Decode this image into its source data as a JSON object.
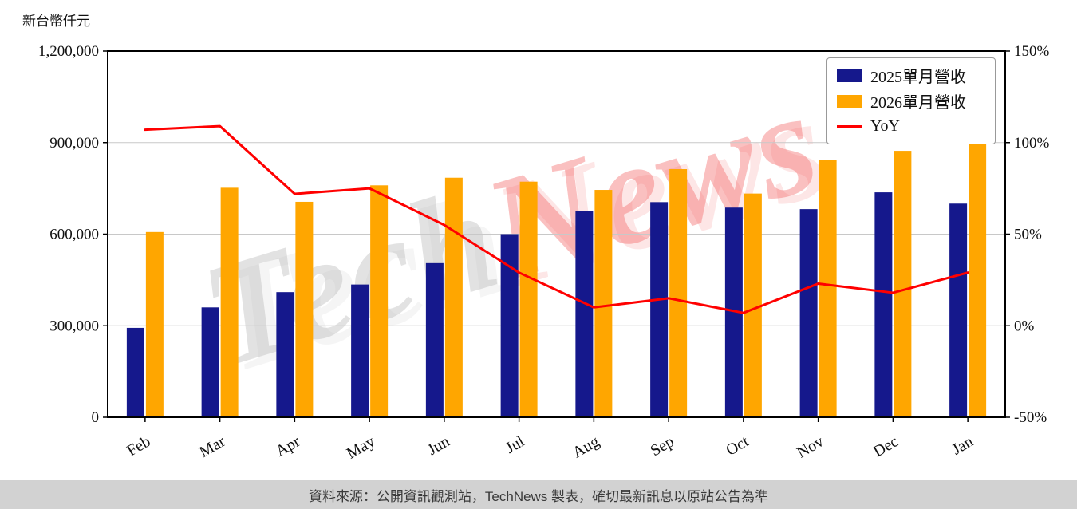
{
  "chart_data": {
    "type": "bar",
    "title": "",
    "ylabel_left": "新台幣仟元",
    "categories": [
      "Feb",
      "Mar",
      "Apr",
      "May",
      "Jun",
      "Jul",
      "Aug",
      "Sep",
      "Oct",
      "Nov",
      "Dec",
      "Jan"
    ],
    "series": [
      {
        "name": "2025單月營收",
        "type": "bar",
        "axis": "left",
        "color": "#15188c",
        "values": [
          293000,
          360000,
          410000,
          435000,
          505000,
          600000,
          677000,
          705000,
          687000,
          682000,
          737000,
          700000
        ]
      },
      {
        "name": "2026單月營收",
        "type": "bar",
        "axis": "left",
        "color": "#ffa600",
        "values": [
          607000,
          752000,
          706000,
          760000,
          785000,
          772000,
          745000,
          813000,
          733000,
          842000,
          873000,
          902000
        ]
      },
      {
        "name": "YoY",
        "type": "line",
        "axis": "right",
        "color": "#ff0000",
        "values": [
          107,
          109,
          72,
          75,
          55,
          29,
          10,
          15,
          7,
          23,
          18,
          29
        ]
      }
    ],
    "left_axis": {
      "min": 0,
      "max": 1200000,
      "ticks": [
        0,
        300000,
        600000,
        900000,
        1200000
      ],
      "tick_labels": [
        "0",
        "300,000",
        "600,000",
        "900,000",
        "1,200,000"
      ]
    },
    "right_axis": {
      "min": -50,
      "max": 150,
      "ticks": [
        -50,
        0,
        50,
        100,
        150
      ],
      "tick_labels": [
        "-50%",
        "0%",
        "50%",
        "100%",
        "150%"
      ]
    },
    "grid": true,
    "grid_color": "#c8c8c8",
    "legend_position": "upper right"
  },
  "watermark": {
    "part1": "Tech",
    "part2": "News"
  },
  "footer": {
    "text": "資料來源：公開資訊觀測站，TechNews 製表，確切最新訊息以原站公告為準"
  },
  "colors": {
    "bar_2025": "#15188c",
    "bar_2026": "#ffa600",
    "yoy_line": "#ff0000",
    "footer_bg": "#d2d2d2",
    "spine": "#000000"
  }
}
